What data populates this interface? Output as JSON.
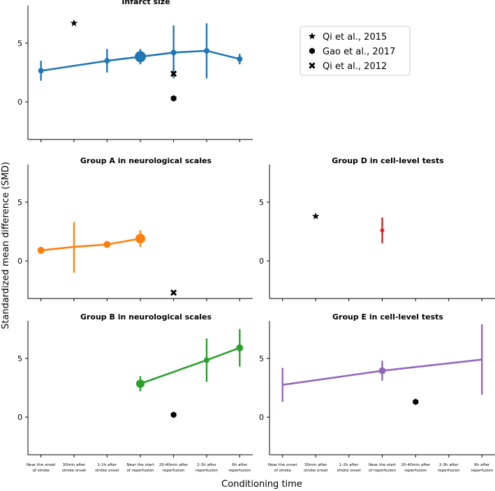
{
  "figure": {
    "ylabel": "Standardized mean difference (SMD)",
    "xlabel": "Conditioning time"
  },
  "categories": [
    [
      "Near the onset",
      "of stroke"
    ],
    [
      "30min after",
      "stroke onset"
    ],
    [
      "1-2h after",
      "stroke onset"
    ],
    [
      "Near the start",
      "of reperfusion"
    ],
    [
      "20-40min after",
      "reperfusion"
    ],
    [
      "2-3h after",
      "reperfusion"
    ],
    [
      "6h after",
      "reperfusion"
    ]
  ],
  "legend": [
    {
      "label": "Qi et al., 2015",
      "marker": "star"
    },
    {
      "label": "Gao et al., 2017",
      "marker": "hexagon"
    },
    {
      "label": "Qi et al., 2012",
      "marker": "x"
    }
  ],
  "chart_data": [
    {
      "type": "line",
      "title": "Infarct size",
      "ylim": [
        -3.2,
        8.2
      ],
      "yticks": [
        0,
        5
      ],
      "show_xlabels": false,
      "color": "#1f77b4",
      "series": {
        "x": [
          0,
          2,
          3,
          4,
          5,
          6
        ],
        "y": [
          2.65,
          3.5,
          3.85,
          4.2,
          4.35,
          3.65
        ],
        "err_low": [
          1.8,
          2.5,
          3.2,
          2.0,
          2.0,
          3.2
        ],
        "err_high": [
          3.5,
          4.5,
          4.5,
          6.5,
          6.7,
          4.1
        ],
        "size": [
          4,
          4,
          8,
          4,
          4,
          4
        ]
      },
      "studies": [
        {
          "marker": "star",
          "x": 1,
          "y": 6.7
        },
        {
          "marker": "x",
          "x": 4,
          "y": 2.4
        },
        {
          "marker": "hexagon",
          "x": 4,
          "y": 0.3
        }
      ]
    },
    {
      "type": "line",
      "title": "Group A in neurological scales",
      "ylim": [
        -3.2,
        8.2
      ],
      "yticks": [
        0,
        5
      ],
      "show_xlabels": false,
      "color": "#ff7f0e",
      "series": {
        "x": [
          0,
          1,
          2,
          3
        ],
        "y": [
          0.9,
          1.2,
          1.4,
          1.9
        ],
        "err_low": [
          0.6,
          -1.0,
          1.2,
          1.2
        ],
        "err_high": [
          1.2,
          3.3,
          1.6,
          2.6
        ],
        "size": [
          5,
          0,
          5,
          7
        ]
      },
      "studies": [
        {
          "marker": "x",
          "x": 4,
          "y": -2.7
        }
      ]
    },
    {
      "type": "line",
      "title": "Group D in cell-level tests",
      "ylim": [
        -3.2,
        8.2
      ],
      "yticks": [
        0,
        5
      ],
      "show_xlabels": false,
      "color": "#d62728",
      "series": {
        "x": [
          3
        ],
        "y": [
          2.6
        ],
        "err_low": [
          1.5
        ],
        "err_high": [
          3.7
        ],
        "size": [
          3
        ]
      },
      "studies": [
        {
          "marker": "star",
          "x": 1,
          "y": 3.8
        }
      ]
    },
    {
      "type": "line",
      "title": "Group B in neurological scales",
      "ylim": [
        -3.2,
        8.2
      ],
      "yticks": [
        0,
        5
      ],
      "show_xlabels": true,
      "color": "#2ca02c",
      "series": {
        "x": [
          3,
          5,
          6
        ],
        "y": [
          2.85,
          4.85,
          5.9
        ],
        "err_low": [
          2.2,
          3.0,
          4.3
        ],
        "err_high": [
          3.5,
          6.7,
          7.5
        ],
        "size": [
          6,
          4,
          5
        ]
      },
      "studies": [
        {
          "marker": "hexagon",
          "x": 4,
          "y": 0.2
        }
      ]
    },
    {
      "type": "line",
      "title": "Group E in cell-level tests",
      "ylim": [
        -3.2,
        8.2
      ],
      "yticks": [
        0,
        5
      ],
      "show_xlabels": true,
      "color": "#9467bd",
      "series": {
        "x": [
          0,
          3,
          6
        ],
        "y": [
          2.75,
          3.95,
          4.9
        ],
        "err_low": [
          1.3,
          3.1,
          1.9
        ],
        "err_high": [
          4.2,
          4.8,
          7.9
        ],
        "size": [
          0,
          5,
          0
        ]
      },
      "studies": [
        {
          "marker": "hexagon",
          "x": 4,
          "y": 1.3
        }
      ]
    }
  ]
}
